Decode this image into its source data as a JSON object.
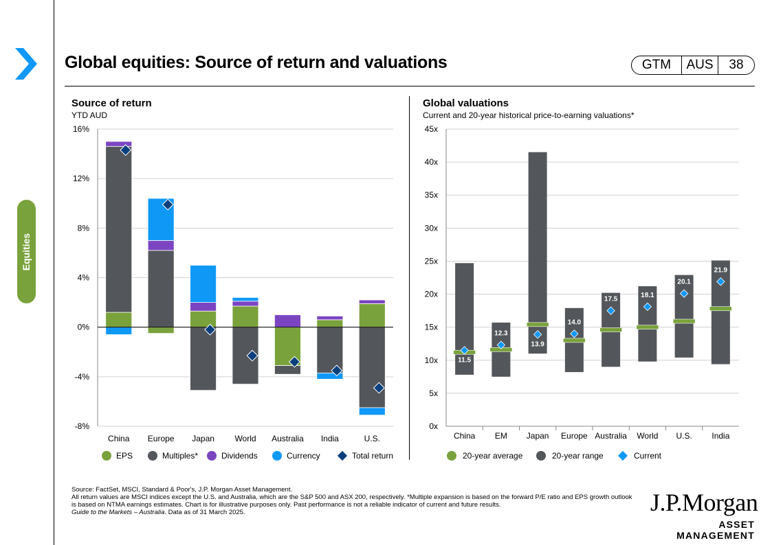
{
  "header": {
    "title": "Global equities: Source of return and valuations",
    "badge": {
      "gtm": "GTM",
      "region": "AUS",
      "page": "38"
    }
  },
  "side_tab": {
    "label": "Equities"
  },
  "colors": {
    "eps": "#7aa23c",
    "multiples": "#53565a",
    "dividends": "#7b45c2",
    "currency": "#1098f7",
    "total_return": "#0b3f7d",
    "avg": "#7aa23c",
    "range": "#53565a",
    "current": "#1098f7",
    "chevron": "#1098f7"
  },
  "chart_data": [
    {
      "type": "bar",
      "stacked": true,
      "title": "Source of return",
      "subtitle": "YTD AUD",
      "ylim": [
        -8,
        16
      ],
      "yticks": [
        "-8%",
        "-4%",
        "0%",
        "4%",
        "8%",
        "12%",
        "16%"
      ],
      "grid": true,
      "categories": [
        "China",
        "Europe",
        "Japan",
        "World",
        "Australia",
        "India",
        "U.S."
      ],
      "series": [
        {
          "name": "EPS",
          "values": [
            1.2,
            -0.5,
            1.3,
            1.7,
            -3.1,
            0.6,
            1.9
          ]
        },
        {
          "name": "Multiples*",
          "values": [
            13.4,
            6.2,
            -5.1,
            -4.6,
            -0.7,
            -3.7,
            -6.5
          ]
        },
        {
          "name": "Dividends",
          "values": [
            0.4,
            0.8,
            0.7,
            0.4,
            1.0,
            0.3,
            0.3
          ]
        },
        {
          "name": "Currency",
          "values": [
            -0.6,
            3.4,
            3.0,
            0.3,
            0.0,
            -0.5,
            -0.6
          ]
        }
      ],
      "total_return": {
        "name": "Total return",
        "values": [
          14.3,
          9.9,
          -0.2,
          -2.3,
          -2.8,
          -3.5,
          -4.9
        ]
      },
      "legend": [
        "EPS",
        "Multiples*",
        "Dividends",
        "Currency",
        "Total return"
      ],
      "legend_position": "bottom"
    },
    {
      "type": "bar",
      "title": "Global valuations",
      "subtitle": "Current  and  20-year historical price-to-earning  valuations*",
      "ylim": [
        0,
        45
      ],
      "yticks": [
        "0x",
        "5x",
        "10x",
        "15x",
        "20x",
        "25x",
        "30x",
        "35x",
        "40x",
        "45x"
      ],
      "grid": true,
      "categories": [
        "China",
        "EM",
        "Japan",
        "Europe",
        "Australia",
        "World",
        "U.S.",
        "India"
      ],
      "range_low": [
        7.8,
        7.5,
        11.0,
        8.2,
        9.0,
        9.8,
        10.4,
        9.4
      ],
      "range_high": [
        24.7,
        15.7,
        41.5,
        17.9,
        20.2,
        21.2,
        22.9,
        25.1
      ],
      "avg": [
        11.2,
        11.6,
        15.4,
        13.0,
        14.6,
        15.0,
        15.9,
        17.8
      ],
      "current": [
        11.5,
        12.3,
        13.9,
        14.0,
        17.5,
        18.1,
        20.1,
        21.9
      ],
      "current_labels": [
        "11.5",
        "12.3",
        "13.9",
        "14.0",
        "17.5",
        "18.1",
        "20.1",
        "21.9"
      ],
      "legend": [
        "20-year average",
        "20-year  range",
        "Current"
      ],
      "legend_position": "bottom"
    }
  ],
  "footnotes": {
    "source": "Source: FactSet, MSCI,  Standard & Poor's,  J.P. Morgan  Asset Management.",
    "line1": "All return values are MSCI  indices except the U.S.  and Australia, which are the S&P 500 and ASX 200, respectively. *Multiple expansion is based on the forward P/E ratio and EPS  growth outlook is based on NTMA earnings estimates. Chart is for illustrative purposes only. Past performance is not a reliable indicator of current and future results.",
    "guide_italic": "Guide to the Markets – Australia",
    "guide_rest": ". Data as of 31 March 2025."
  },
  "logo": {
    "name": "J.P.Morgan",
    "sub": "ASSET MANAGEMENT"
  }
}
